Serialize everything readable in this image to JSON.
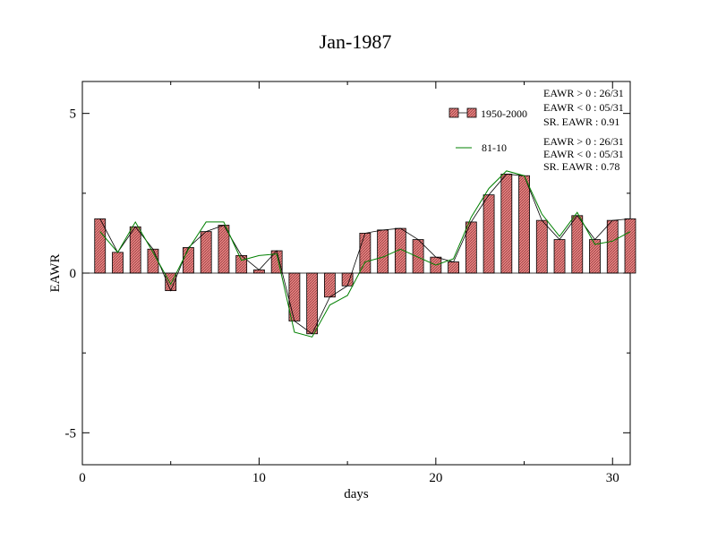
{
  "chart_data": {
    "type": "bar",
    "title": "Jan-1987",
    "xlabel": "days",
    "ylabel": "EAWR",
    "xlim": [
      0,
      31
    ],
    "ylim": [
      -6,
      6
    ],
    "xticks": [
      0,
      10,
      20,
      30
    ],
    "yticks": [
      -5,
      0,
      5
    ],
    "grid": false,
    "legend_position": "top-right",
    "x": [
      1,
      2,
      3,
      4,
      5,
      6,
      7,
      8,
      9,
      10,
      11,
      12,
      13,
      14,
      15,
      16,
      17,
      18,
      19,
      20,
      21,
      22,
      23,
      24,
      25,
      26,
      27,
      28,
      29,
      30,
      31
    ],
    "series": [
      {
        "name": "1950-2000",
        "kind": "bar",
        "color": "#e07070",
        "line_color": "#000000",
        "values": [
          1.7,
          0.65,
          1.45,
          0.75,
          -0.55,
          0.8,
          1.3,
          1.5,
          0.55,
          0.1,
          0.7,
          -1.5,
          -1.9,
          -0.75,
          -0.4,
          1.25,
          1.35,
          1.4,
          1.05,
          0.5,
          0.35,
          1.6,
          2.45,
          3.1,
          3.05,
          1.65,
          1.05,
          1.8,
          1.05,
          1.65,
          1.7
        ],
        "stats": [
          "EAWR > 0 : 26/31",
          "EAWR < 0 : 05/31",
          "SR. EAWR :  0.91"
        ]
      },
      {
        "name": "81-10",
        "kind": "line",
        "color": "#008000",
        "values": [
          1.3,
          0.65,
          1.6,
          0.65,
          -0.35,
          0.75,
          1.6,
          1.6,
          0.4,
          0.55,
          0.6,
          -1.85,
          -2.0,
          -1.0,
          -0.7,
          0.35,
          0.5,
          0.75,
          0.5,
          0.25,
          0.45,
          1.75,
          2.65,
          3.2,
          3.05,
          1.85,
          1.15,
          1.9,
          0.9,
          1.0,
          1.3
        ],
        "stats": [
          "EAWR > 0 : 26/31",
          "EAWR < 0 : 05/31",
          "SR. EAWR :  0.78"
        ]
      }
    ]
  }
}
